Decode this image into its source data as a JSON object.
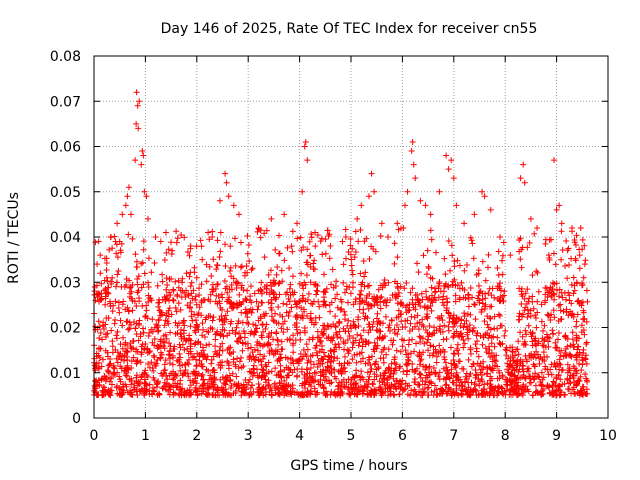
{
  "chart_data": {
    "type": "scatter",
    "title": "Day 146 of 2025, Rate Of TEC Index for receiver cn55",
    "xlabel": "GPS time / hours",
    "ylabel": "ROTI / TECUs",
    "xlim": [
      0,
      10
    ],
    "ylim": [
      0,
      0.08
    ],
    "grid": true,
    "marker": "+",
    "color": "#ff0000",
    "x_ticks": [
      {
        "value": 0,
        "label": "0"
      },
      {
        "value": 1,
        "label": "1"
      },
      {
        "value": 2,
        "label": "2"
      },
      {
        "value": 3,
        "label": "3"
      },
      {
        "value": 4,
        "label": "4"
      },
      {
        "value": 5,
        "label": "5"
      },
      {
        "value": 6,
        "label": "6"
      },
      {
        "value": 7,
        "label": "7"
      },
      {
        "value": 8,
        "label": "8"
      },
      {
        "value": 9,
        "label": "9"
      },
      {
        "value": 10,
        "label": "10"
      }
    ],
    "y_ticks": [
      {
        "value": 0,
        "label": "0"
      },
      {
        "value": 0.01,
        "label": "0.01"
      },
      {
        "value": 0.02,
        "label": "0.02"
      },
      {
        "value": 0.03,
        "label": "0.03"
      },
      {
        "value": 0.04,
        "label": "0.04"
      },
      {
        "value": 0.05,
        "label": "0.05"
      },
      {
        "value": 0.06,
        "label": "0.06"
      },
      {
        "value": 0.07,
        "label": "0.07"
      },
      {
        "value": 0.08,
        "label": "0.08"
      }
    ],
    "series": [
      {
        "name": "ROTI",
        "x_range": [
          0,
          9.6
        ],
        "typical_range": [
          0.005,
          0.03
        ],
        "highlight_points": [
          {
            "x": 0.03,
            "y": 0.026
          },
          {
            "x": 0.06,
            "y": 0.034
          },
          {
            "x": 0.12,
            "y": 0.036
          },
          {
            "x": 0.25,
            "y": 0.031
          },
          {
            "x": 0.33,
            "y": 0.04
          },
          {
            "x": 0.42,
            "y": 0.039
          },
          {
            "x": 0.45,
            "y": 0.043
          },
          {
            "x": 0.55,
            "y": 0.045
          },
          {
            "x": 0.62,
            "y": 0.047
          },
          {
            "x": 0.65,
            "y": 0.049
          },
          {
            "x": 0.68,
            "y": 0.051
          },
          {
            "x": 0.72,
            "y": 0.045
          },
          {
            "x": 0.8,
            "y": 0.057
          },
          {
            "x": 0.82,
            "y": 0.065
          },
          {
            "x": 0.83,
            "y": 0.072
          },
          {
            "x": 0.85,
            "y": 0.069
          },
          {
            "x": 0.86,
            "y": 0.064
          },
          {
            "x": 0.88,
            "y": 0.07
          },
          {
            "x": 0.92,
            "y": 0.056
          },
          {
            "x": 0.94,
            "y": 0.059
          },
          {
            "x": 0.96,
            "y": 0.058
          },
          {
            "x": 0.98,
            "y": 0.05
          },
          {
            "x": 1.02,
            "y": 0.049
          },
          {
            "x": 1.05,
            "y": 0.044
          },
          {
            "x": 1.3,
            "y": 0.039
          },
          {
            "x": 1.4,
            "y": 0.041
          },
          {
            "x": 1.52,
            "y": 0.037
          },
          {
            "x": 1.8,
            "y": 0.032
          },
          {
            "x": 2.0,
            "y": 0.031
          },
          {
            "x": 2.22,
            "y": 0.041
          },
          {
            "x": 2.3,
            "y": 0.04
          },
          {
            "x": 2.45,
            "y": 0.048
          },
          {
            "x": 2.55,
            "y": 0.054
          },
          {
            "x": 2.58,
            "y": 0.052
          },
          {
            "x": 2.62,
            "y": 0.049
          },
          {
            "x": 2.72,
            "y": 0.047
          },
          {
            "x": 2.82,
            "y": 0.045
          },
          {
            "x": 3.2,
            "y": 0.042
          },
          {
            "x": 3.45,
            "y": 0.044
          },
          {
            "x": 3.7,
            "y": 0.045
          },
          {
            "x": 3.95,
            "y": 0.043
          },
          {
            "x": 4.05,
            "y": 0.05
          },
          {
            "x": 4.1,
            "y": 0.06
          },
          {
            "x": 4.12,
            "y": 0.061
          },
          {
            "x": 4.15,
            "y": 0.057
          },
          {
            "x": 4.3,
            "y": 0.041
          },
          {
            "x": 4.6,
            "y": 0.038
          },
          {
            "x": 4.9,
            "y": 0.04
          },
          {
            "x": 5.12,
            "y": 0.044
          },
          {
            "x": 5.2,
            "y": 0.047
          },
          {
            "x": 5.35,
            "y": 0.049
          },
          {
            "x": 5.4,
            "y": 0.054
          },
          {
            "x": 5.45,
            "y": 0.05
          },
          {
            "x": 5.6,
            "y": 0.043
          },
          {
            "x": 5.72,
            "y": 0.04
          },
          {
            "x": 5.9,
            "y": 0.043
          },
          {
            "x": 6.05,
            "y": 0.047
          },
          {
            "x": 6.1,
            "y": 0.05
          },
          {
            "x": 6.18,
            "y": 0.059
          },
          {
            "x": 6.2,
            "y": 0.061
          },
          {
            "x": 6.22,
            "y": 0.056
          },
          {
            "x": 6.25,
            "y": 0.053
          },
          {
            "x": 6.35,
            "y": 0.048
          },
          {
            "x": 6.45,
            "y": 0.047
          },
          {
            "x": 6.55,
            "y": 0.045
          },
          {
            "x": 6.72,
            "y": 0.05
          },
          {
            "x": 6.85,
            "y": 0.058
          },
          {
            "x": 6.9,
            "y": 0.055
          },
          {
            "x": 6.95,
            "y": 0.057
          },
          {
            "x": 7.0,
            "y": 0.053
          },
          {
            "x": 7.05,
            "y": 0.047
          },
          {
            "x": 7.2,
            "y": 0.043
          },
          {
            "x": 7.4,
            "y": 0.045
          },
          {
            "x": 7.55,
            "y": 0.05
          },
          {
            "x": 7.6,
            "y": 0.049
          },
          {
            "x": 7.72,
            "y": 0.046
          },
          {
            "x": 7.9,
            "y": 0.04
          },
          {
            "x": 8.1,
            "y": 0.036
          },
          {
            "x": 8.3,
            "y": 0.053
          },
          {
            "x": 8.35,
            "y": 0.056
          },
          {
            "x": 8.38,
            "y": 0.052
          },
          {
            "x": 8.5,
            "y": 0.044
          },
          {
            "x": 8.62,
            "y": 0.042
          },
          {
            "x": 8.85,
            "y": 0.036
          },
          {
            "x": 8.95,
            "y": 0.057
          },
          {
            "x": 9.0,
            "y": 0.046
          },
          {
            "x": 9.05,
            "y": 0.047
          },
          {
            "x": 9.1,
            "y": 0.043
          },
          {
            "x": 9.3,
            "y": 0.042
          },
          {
            "x": 9.45,
            "y": 0.036
          },
          {
            "x": 9.55,
            "y": 0.034
          }
        ]
      }
    ]
  }
}
